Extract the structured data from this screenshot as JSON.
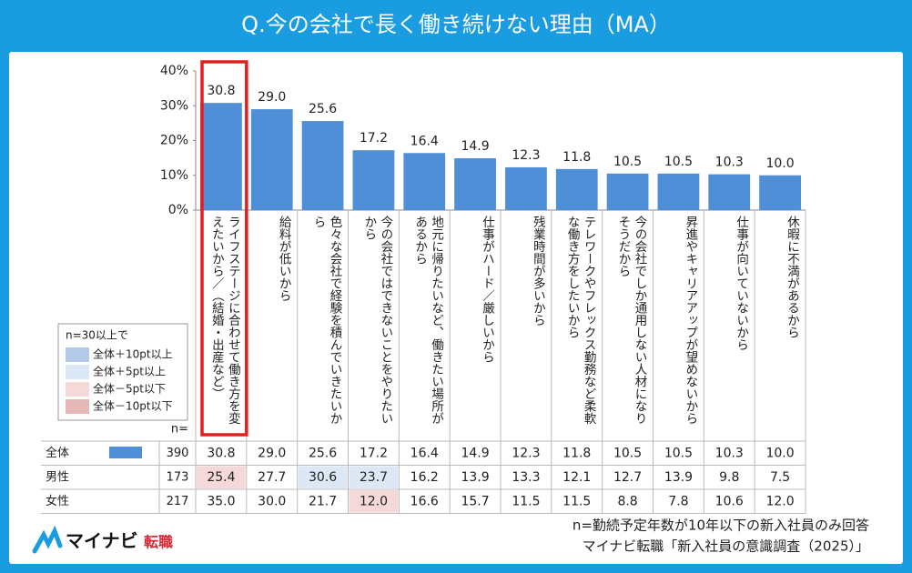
{
  "header": {
    "title": "Q.今の会社で長く働き続けない理由（MA）"
  },
  "chart_data": {
    "type": "bar",
    "categories": [
      "ライフステージに合わせて働き方を変えたいから／（結婚・出産など）",
      "給料が低いから",
      "色々な会社で経験を積んでいきたいから",
      "今の会社ではできないことをやりたいから",
      "地元に帰りたいなど、働きたい場所があるから",
      "仕事がハード／厳しいから",
      "残業時間が多いから",
      "テレワークやフレックス勤務など柔軟な働き方をしたいから",
      "今の会社でしか通用しない人材になりそうだから",
      "昇進やキャリアアップが望めないから",
      "仕事が向いていないから",
      "休暇に不満があるから"
    ],
    "values": [
      30.8,
      29,
      25.6,
      17.2,
      16.4,
      14.9,
      12.3,
      11.8,
      10.5,
      10.5,
      10.3,
      10
    ],
    "value_labels": [
      "30.8",
      "29.0",
      "25.6",
      "17.2",
      "16.4",
      "14.9",
      "12.3",
      "11.8",
      "10.5",
      "10.5",
      "10.3",
      "10.0"
    ],
    "color": "#4f8fd8",
    "ylim": [
      0,
      40
    ],
    "yticks": [
      {
        "value": 0,
        "label": "0%"
      },
      {
        "value": 10,
        "label": "10%"
      },
      {
        "value": 20,
        "label": "20%"
      },
      {
        "value": 30,
        "label": "30%"
      },
      {
        "value": 40,
        "label": "40%"
      }
    ],
    "highlight_category": 0
  },
  "legend": {
    "title": "n=30以上で",
    "items": [
      {
        "label": "全体＋10pt以上",
        "color": "#b3cbe8"
      },
      {
        "label": "全体＋5pt以上",
        "color": "#dce8f6"
      },
      {
        "label": "全体－5pt以下",
        "color": "#f5d9d9"
      },
      {
        "label": "全体－10pt以下",
        "color": "#e6b9b9"
      }
    ]
  },
  "table": {
    "n_header": "n=",
    "rows": [
      {
        "label": "全体",
        "n": "390",
        "values": [
          "30.8",
          "29.0",
          "25.6",
          "17.2",
          "16.4",
          "14.9",
          "12.3",
          "11.8",
          "10.5",
          "10.5",
          "10.3",
          "10.0"
        ]
      },
      {
        "label": "男性",
        "n": "173",
        "values": [
          "25.4",
          "27.7",
          "30.6",
          "23.7",
          "16.2",
          "13.9",
          "13.3",
          "12.1",
          "12.7",
          "13.9",
          "9.8",
          "7.5"
        ]
      },
      {
        "label": "女性",
        "n": "217",
        "values": [
          "35.0",
          "30.0",
          "21.7",
          "12.0",
          "16.6",
          "15.7",
          "11.5",
          "11.5",
          "8.8",
          "7.8",
          "10.6",
          "12.0"
        ]
      }
    ],
    "highlights": [
      {
        "row": 1,
        "col": 0,
        "legend": 2
      },
      {
        "row": 1,
        "col": 2,
        "legend": 1
      },
      {
        "row": 1,
        "col": 3,
        "legend": 1
      },
      {
        "row": 2,
        "col": 3,
        "legend": 2
      }
    ]
  },
  "notes": [
    "n=勤続予定年数が10年以下の新入社員のみ回答",
    "マイナビ転職「新入社員の意識調査（2025）」"
  ],
  "logo": {
    "text": "マイナビ",
    "sub": "転職"
  }
}
